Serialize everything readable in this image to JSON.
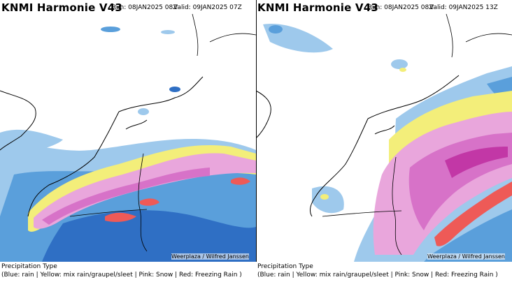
{
  "panels": [
    {
      "title": "KNMI Harmonie V43",
      "run": "Run: 08JAN2025 08Z",
      "valid": "Valid: 09JAN2025 07Z",
      "credit": "Weerplaza / Wilfred Janssen",
      "legend_title": "Precipitation Type",
      "legend_text": "(Blue: rain | Yellow: mix rain/graupel/sleet | Pink: Snow | Red: Freezing Rain )"
    },
    {
      "title": "KNMI Harmonie V43",
      "run": "Run: 08JAN2025 08Z",
      "valid": "Valid: 09JAN2025 13Z",
      "credit": "Weerplaza / Wilfred Janssen",
      "legend_title": "Precipitation Type",
      "legend_text": "(Blue: rain | Yellow: mix rain/graupel/sleet | Pink: Snow | Red: Freezing Rain )"
    }
  ],
  "colors": {
    "rain_light": "#9ec9ec",
    "rain": "#5a9fdb",
    "rain_heavy": "#2f6fc4",
    "mix": "#f3ee7a",
    "snow_light": "#e9a6dc",
    "snow": "#d772c8",
    "snow_heavy": "#c237a6",
    "freezing_rain": "#ee5a57",
    "coastline": "#000000"
  }
}
